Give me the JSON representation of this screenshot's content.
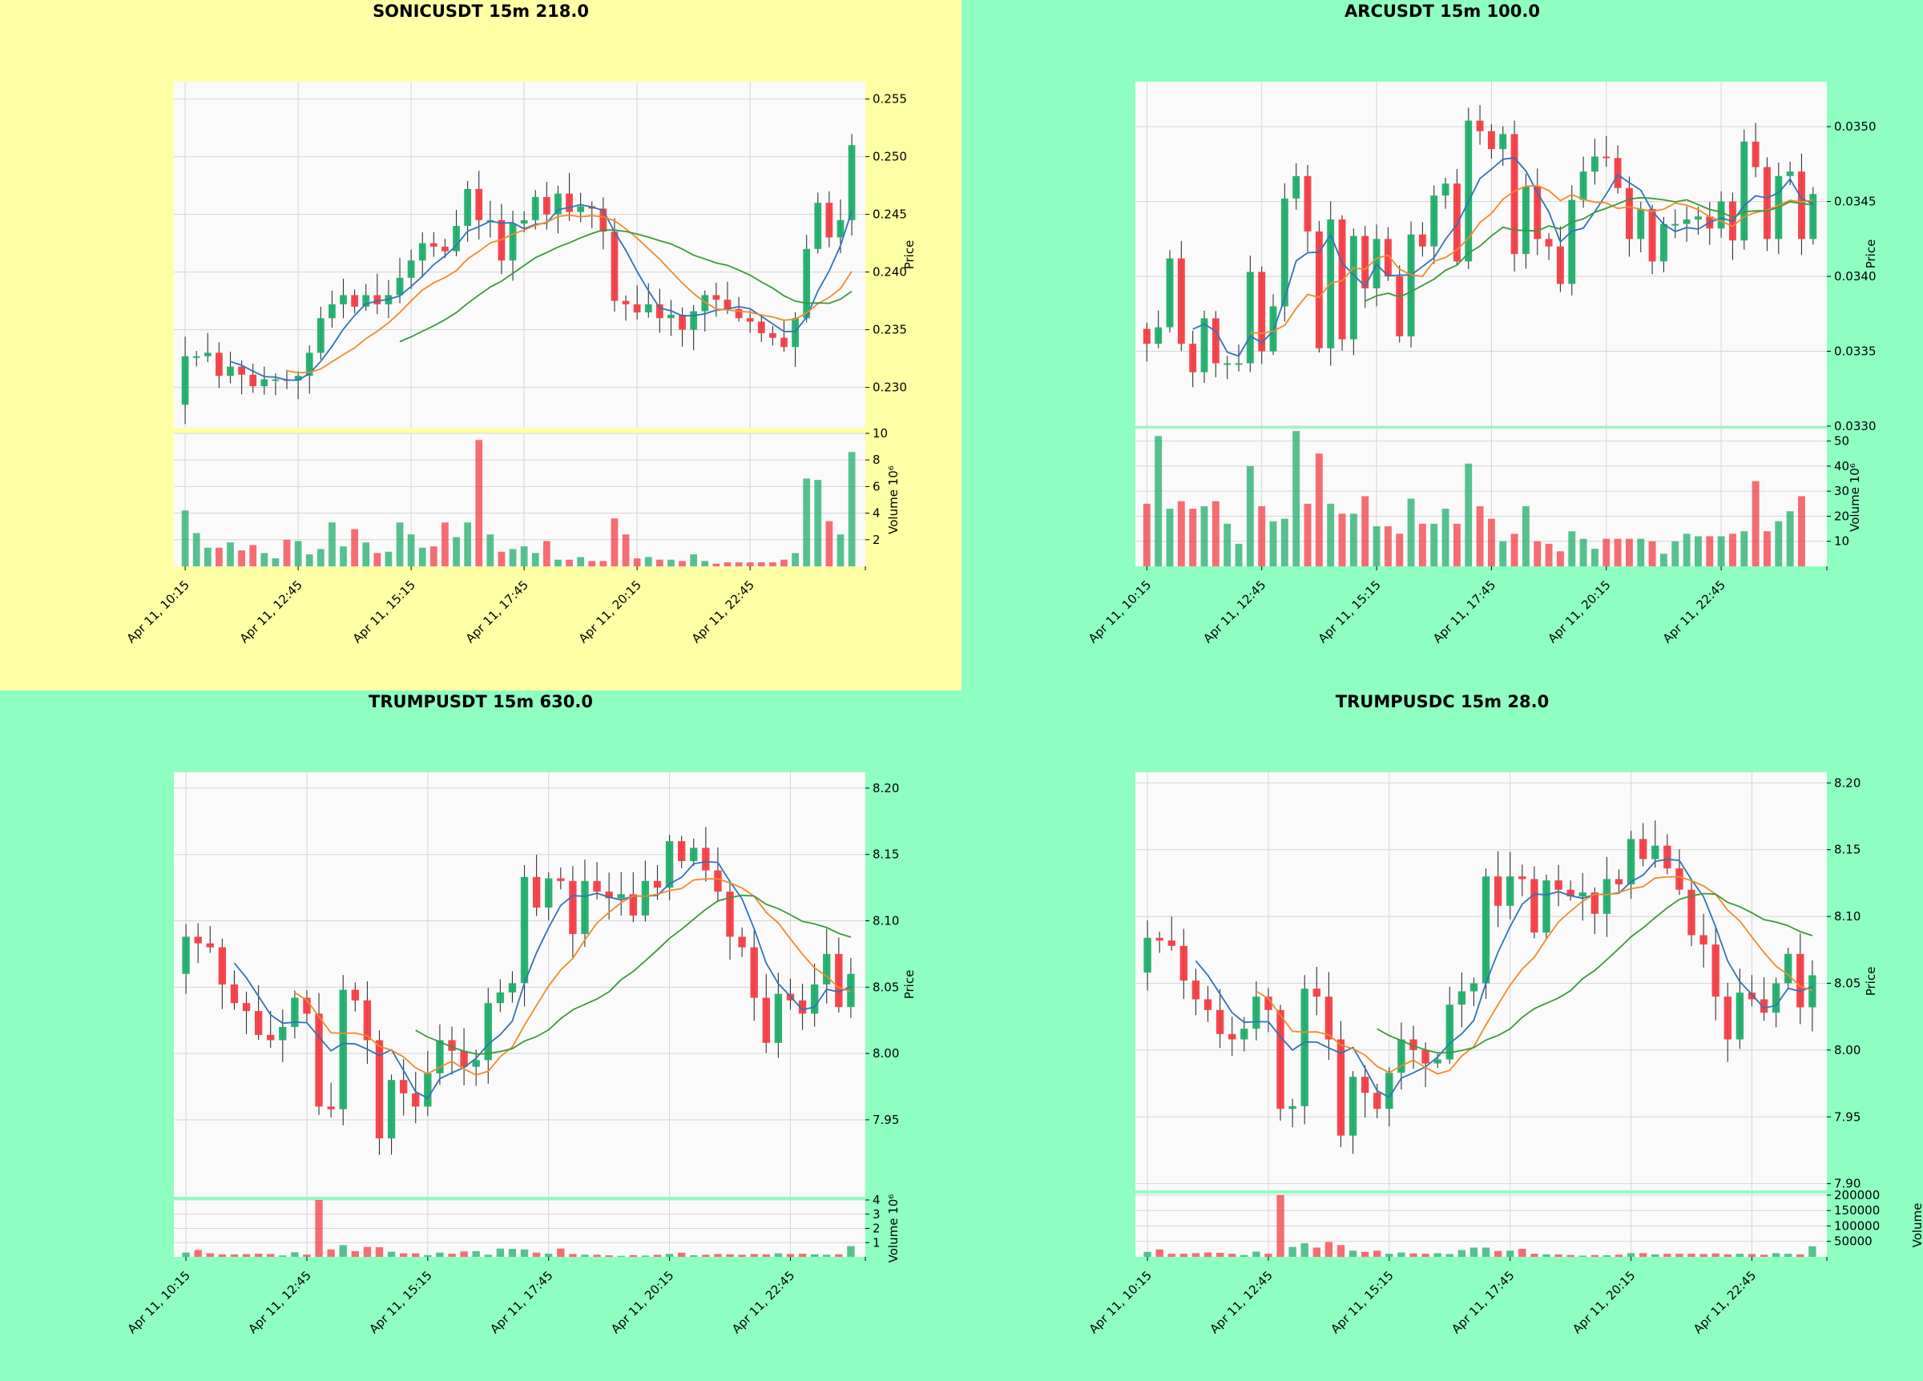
{
  "colors": {
    "up": "#1fae6b",
    "down": "#f43c45",
    "ma_fast": "#2f74b5",
    "ma_mid": "#f28a2a",
    "ma_slow": "#3a9a3a",
    "plot_bg": "#fafafa",
    "grid": "#d4d4d4"
  },
  "chart_data": [
    {
      "type": "candlestick",
      "title": "SONICUSDT 15m 218.0",
      "background": "#ffffa6",
      "ylabel": "Price",
      "volume_label": "Volume  10⁶",
      "price_ylim": [
        0.2265,
        0.2565
      ],
      "price_ticks": [
        "0.230",
        "0.235",
        "0.240",
        "0.245",
        "0.250",
        "0.255"
      ],
      "volume_ylim": [
        0,
        10
      ],
      "volume_ticks": [
        "2",
        "4",
        "6",
        "8",
        "10"
      ],
      "x_tick_labels": [
        "Apr 11, 10:15",
        "Apr 11, 12:45",
        "Apr 11, 15:15",
        "Apr 11, 17:45",
        "Apr 11, 20:15",
        "Apr 11, 22:45"
      ],
      "grid": true,
      "base_close": 0.2285,
      "closes": [
        0.2327,
        0.2327,
        0.233,
        0.231,
        0.2318,
        0.2311,
        0.2301,
        0.2307,
        0.2307,
        0.2306,
        0.231,
        0.233,
        0.236,
        0.2372,
        0.238,
        0.237,
        0.238,
        0.2372,
        0.238,
        0.2395,
        0.241,
        0.2425,
        0.2422,
        0.2418,
        0.244,
        0.2472,
        0.2445,
        0.2445,
        0.241,
        0.2442,
        0.2445,
        0.2465,
        0.245,
        0.2468,
        0.2452,
        0.2457,
        0.2455,
        0.2435,
        0.2375,
        0.2372,
        0.2365,
        0.2372,
        0.236,
        0.2363,
        0.235,
        0.2366,
        0.238,
        0.2376,
        0.2368,
        0.236,
        0.2357,
        0.2347,
        0.2343,
        0.2335,
        0.236,
        0.242,
        0.246,
        0.243,
        0.2445,
        0.251
      ],
      "volume": [
        4.2,
        2.5,
        1.4,
        1.4,
        1.8,
        1.2,
        1.6,
        1.0,
        0.6,
        2.0,
        1.9,
        0.9,
        1.3,
        3.3,
        1.5,
        2.8,
        1.8,
        1.0,
        1.1,
        3.3,
        2.4,
        1.4,
        1.5,
        3.3,
        2.2,
        3.3,
        9.5,
        2.4,
        1.1,
        1.3,
        1.5,
        1.0,
        1.9,
        0.5,
        0.5,
        0.7,
        0.4,
        0.4,
        3.6,
        2.4,
        0.6,
        0.7,
        0.5,
        0.5,
        0.4,
        0.9,
        0.4,
        0.2,
        0.3,
        0.3,
        0.3,
        0.3,
        0.3,
        0.5,
        1.0,
        6.6,
        6.5,
        3.4,
        2.4,
        8.6
      ]
    },
    {
      "type": "candlestick",
      "title": "ARCUSDT 15m 100.0",
      "background": "#8effc1",
      "ylabel": "Price",
      "volume_label": "Volume  10⁶",
      "price_ylim": [
        0.033,
        0.0353
      ],
      "price_ticks": [
        "0.0330",
        "0.0335",
        "0.0340",
        "0.0345",
        "0.0350"
      ],
      "volume_ylim": [
        0,
        55
      ],
      "volume_ticks": [
        "10",
        "20",
        "30",
        "40",
        "50"
      ],
      "x_tick_labels": [
        "Apr 11, 10:15",
        "Apr 11, 12:45",
        "Apr 11, 15:15",
        "Apr 11, 17:45",
        "Apr 11, 20:15",
        "Apr 11, 22:45"
      ],
      "grid": true,
      "base_close": 0.03365,
      "closes": [
        0.03355,
        0.03366,
        0.03412,
        0.03355,
        0.03336,
        0.03372,
        0.03342,
        0.03342,
        0.03342,
        0.03403,
        0.0335,
        0.0338,
        0.03452,
        0.03467,
        0.0343,
        0.03352,
        0.03438,
        0.03358,
        0.03427,
        0.03392,
        0.03425,
        0.034,
        0.0336,
        0.03428,
        0.0342,
        0.03454,
        0.03462,
        0.0341,
        0.03504,
        0.03497,
        0.03485,
        0.03495,
        0.03415,
        0.0346,
        0.03425,
        0.0342,
        0.03395,
        0.03451,
        0.0347,
        0.0348,
        0.03479,
        0.03459,
        0.03425,
        0.03445,
        0.0341,
        0.03435,
        0.03435,
        0.03438,
        0.0344,
        0.03432,
        0.0345,
        0.03424,
        0.0349,
        0.03473,
        0.03425,
        0.03467,
        0.0347,
        0.03425,
        0.03455
      ],
      "volume": [
        25,
        52,
        23,
        26,
        23,
        24,
        26,
        17,
        9,
        40,
        24,
        18,
        19,
        54,
        25,
        45,
        25,
        21,
        21,
        28,
        16,
        16,
        13,
        27,
        17,
        17,
        23,
        17,
        41,
        24,
        19,
        10,
        13,
        24,
        10,
        9,
        6,
        14,
        11,
        7,
        11,
        11,
        11,
        11,
        10,
        5,
        10,
        13,
        12,
        12,
        12,
        13,
        14,
        34,
        14,
        18,
        22,
        28
      ]
    },
    {
      "type": "candlestick",
      "title": "TRUMPUSDT 15m 630.0",
      "background": "#8effc1",
      "ylabel": "Price",
      "volume_label": "Volume  10⁶",
      "price_ylim": [
        7.892,
        8.212
      ],
      "price_ticks": [
        "7.95",
        "8.00",
        "8.05",
        "8.10",
        "8.15",
        "8.20"
      ],
      "volume_ylim": [
        0,
        4
      ],
      "volume_ticks": [
        "1",
        "2",
        "3",
        "4"
      ],
      "x_tick_labels": [
        "Apr 11, 10:15",
        "Apr 11, 12:45",
        "Apr 11, 15:15",
        "Apr 11, 17:45",
        "Apr 11, 20:15",
        "Apr 11, 22:45"
      ],
      "grid": true,
      "base_close": 8.06,
      "closes": [
        8.088,
        8.083,
        8.08,
        8.052,
        8.038,
        8.032,
        8.014,
        8.01,
        8.02,
        8.042,
        8.03,
        7.96,
        7.958,
        8.048,
        8.04,
        8.01,
        7.936,
        7.98,
        7.97,
        7.96,
        7.985,
        8.01,
        8.002,
        7.99,
        7.995,
        8.038,
        8.046,
        8.053,
        8.133,
        8.11,
        8.132,
        8.13,
        8.09,
        8.13,
        8.122,
        8.117,
        8.12,
        8.104,
        8.13,
        8.125,
        8.16,
        8.145,
        8.155,
        8.138,
        8.122,
        8.088,
        8.08,
        8.042,
        8.008,
        8.045,
        8.04,
        8.03,
        8.052,
        8.075,
        8.035,
        8.06
      ],
      "volume": [
        0.3,
        0.48,
        0.25,
        0.17,
        0.17,
        0.19,
        0.22,
        0.2,
        0.1,
        0.32,
        0.16,
        4.0,
        0.52,
        0.82,
        0.4,
        0.7,
        0.68,
        0.36,
        0.25,
        0.25,
        0.12,
        0.3,
        0.22,
        0.38,
        0.4,
        0.15,
        0.58,
        0.56,
        0.52,
        0.3,
        0.22,
        0.58,
        0.2,
        0.15,
        0.15,
        0.11,
        0.07,
        0.12,
        0.09,
        0.15,
        0.21,
        0.29,
        0.11,
        0.15,
        0.2,
        0.18,
        0.15,
        0.2,
        0.18,
        0.25,
        0.2,
        0.22,
        0.18,
        0.15,
        0.18,
        0.75
      ]
    },
    {
      "type": "candlestick",
      "title": "TRUMPUSDC 15m 28.0",
      "background": "#8effc1",
      "ylabel": "Price",
      "volume_label": "Volume",
      "price_ylim": [
        7.895,
        8.208
      ],
      "price_ticks": [
        "7.90",
        "7.95",
        "8.00",
        "8.05",
        "8.10",
        "8.15",
        "8.20"
      ],
      "volume_ylim": [
        0,
        205000
      ],
      "volume_ticks": [
        "50000",
        "100000",
        "150000",
        "200000"
      ],
      "x_tick_labels": [
        "Apr 11, 10:15",
        "Apr 11, 12:45",
        "Apr 11, 15:15",
        "Apr 11, 17:45",
        "Apr 11, 20:15",
        "Apr 11, 22:45"
      ],
      "grid": true,
      "base_close": 8.058,
      "closes": [
        8.084,
        8.082,
        8.078,
        8.052,
        8.038,
        8.03,
        8.012,
        8.008,
        8.016,
        8.04,
        8.03,
        7.956,
        7.958,
        8.046,
        8.04,
        8.008,
        7.936,
        7.98,
        7.968,
        7.956,
        7.983,
        8.008,
        8.0,
        7.99,
        7.993,
        8.034,
        8.044,
        8.05,
        8.13,
        8.108,
        8.13,
        8.128,
        8.088,
        8.127,
        8.12,
        8.115,
        8.118,
        8.102,
        8.128,
        8.124,
        8.158,
        8.143,
        8.153,
        8.136,
        8.12,
        8.086,
        8.079,
        8.04,
        8.008,
        8.043,
        8.038,
        8.028,
        8.05,
        8.072,
        8.032,
        8.056
      ],
      "volume": [
        16000,
        24000,
        10000,
        10000,
        12000,
        14000,
        13000,
        10000,
        6000,
        17000,
        10000,
        200000,
        32000,
        44000,
        30000,
        48000,
        38000,
        20000,
        16000,
        20000,
        10000,
        14000,
        11000,
        10000,
        12000,
        9000,
        22000,
        30000,
        30000,
        19000,
        20000,
        26000,
        10000,
        8000,
        8000,
        6000,
        4000,
        6000,
        5000,
        7000,
        12000,
        12000,
        8000,
        10000,
        10000,
        10000,
        9000,
        11000,
        8000,
        10000,
        9000,
        7000,
        12000,
        10000,
        8000,
        34000
      ]
    }
  ]
}
